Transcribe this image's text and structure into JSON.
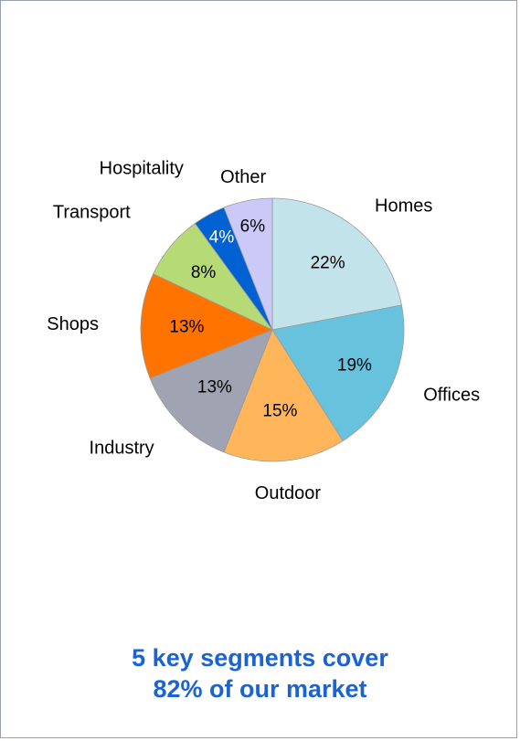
{
  "chart_data": {
    "type": "pie",
    "title": "",
    "slices": [
      {
        "label": "Homes",
        "value": 22,
        "value_label": "22%",
        "color": "#c2e3ea"
      },
      {
        "label": "Offices",
        "value": 19,
        "value_label": "19%",
        "color": "#67c3dd"
      },
      {
        "label": "Outdoor",
        "value": 15,
        "value_label": "15%",
        "color": "#ffb65a"
      },
      {
        "label": "Industry",
        "value": 13,
        "value_label": "13%",
        "color": "#a0a3b2"
      },
      {
        "label": "Shops",
        "value": 13,
        "value_label": "13%",
        "color": "#ff7300"
      },
      {
        "label": "Transport",
        "value": 8,
        "value_label": "8%",
        "color": "#b6da75"
      },
      {
        "label": "Hospitality",
        "value": 4,
        "value_label": "4%",
        "color": "#0061d2"
      },
      {
        "label": "Other",
        "value": 6,
        "value_label": "6%",
        "color": "#cbc9f8"
      }
    ],
    "start": "12 o'clock",
    "direction": "clockwise",
    "legend": "none (category labels outside slices)"
  },
  "caption": {
    "line1": "5 key segments cover",
    "line2": "82% of our market",
    "color": "#1a63d1"
  }
}
